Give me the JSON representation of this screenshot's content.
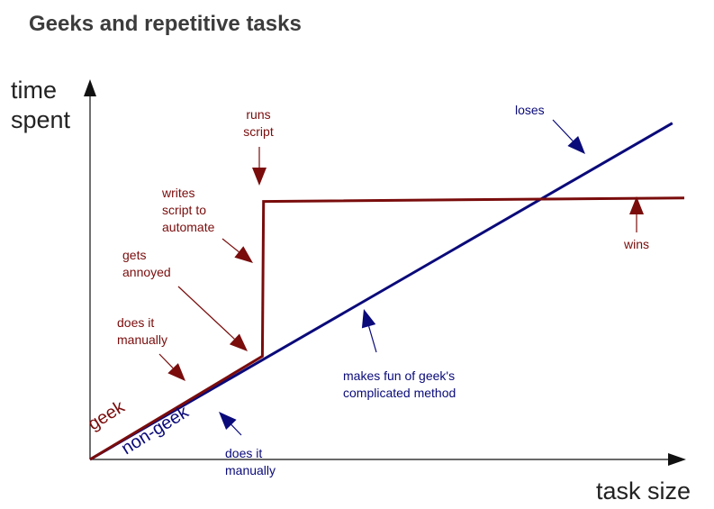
{
  "chart_data": {
    "type": "line",
    "title": "Geeks and repetitive tasks",
    "xlabel": "task size",
    "ylabel": [
      "time",
      "spent"
    ],
    "grid": false,
    "legend": "none",
    "colors": {
      "geek": "#7a0c0c",
      "non_geek": "#0a0a7a",
      "axis": "#111111",
      "title": "#3c3c3c"
    },
    "xlim": [
      0,
      100
    ],
    "ylim": [
      0,
      100
    ],
    "series": [
      {
        "key": "geek",
        "name": "geek",
        "points": [
          [
            0,
            0
          ],
          [
            29,
            29
          ],
          [
            29.2,
            72.5
          ],
          [
            100,
            73.5
          ]
        ]
      },
      {
        "key": "non_geek",
        "name": "non-geek",
        "points": [
          [
            0,
            0
          ],
          [
            98,
            94.5
          ]
        ]
      }
    ],
    "annotations": [
      {
        "key": "ann-geek-manual",
        "lines": [
          "does it",
          "manually"
        ],
        "series": "geek"
      },
      {
        "key": "ann-annoyed",
        "lines": [
          "gets",
          "annoyed"
        ],
        "series": "geek"
      },
      {
        "key": "ann-writes-script",
        "lines": [
          "writes",
          "script to",
          "automate"
        ],
        "series": "geek"
      },
      {
        "key": "ann-runs-script",
        "lines": [
          "runs",
          "script"
        ],
        "series": "geek"
      },
      {
        "key": "ann-wins",
        "lines": [
          "wins"
        ],
        "series": "geek"
      },
      {
        "key": "ann-loses",
        "lines": [
          "loses"
        ],
        "series": "non_geek"
      },
      {
        "key": "ann-makes-fun",
        "lines": [
          "makes fun of geek's",
          "complicated method"
        ],
        "series": "non_geek"
      },
      {
        "key": "ann-nongeek-manual",
        "lines": [
          "does it",
          "manually"
        ],
        "series": "non_geek"
      }
    ]
  }
}
